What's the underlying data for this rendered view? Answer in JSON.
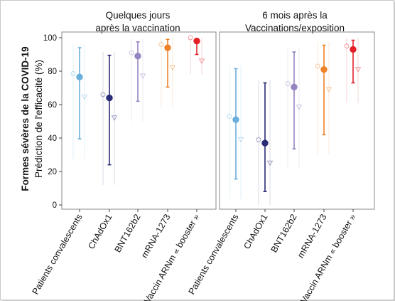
{
  "chart_data": [
    {
      "type": "scatter",
      "panel_title_line1": "Quelques jours",
      "panel_title_line2": "après la vaccination",
      "ylabel": "Prédiction de l'efficacité (%)",
      "outer_ylabel": "Formes sévères de la COVID-19",
      "ylim": [
        0,
        100
      ],
      "yticks": [
        0,
        20,
        40,
        60,
        80,
        100
      ],
      "categories": [
        "Patients convalescents",
        "ChAdOx1",
        "BNT162b2",
        "mRNA-1273",
        "Vaccin ARNm « booster »"
      ],
      "colors": [
        "#6aafdc",
        "#2b2c78",
        "#9484c2",
        "#ee8229",
        "#e32028"
      ],
      "series": [
        {
          "value": 76.5,
          "ci": [
            39.5,
            94
          ]
        },
        {
          "value": 64,
          "ci": [
            24,
            89.5
          ]
        },
        {
          "value": 89,
          "ci": [
            62,
            97.5
          ]
        },
        {
          "value": 94,
          "ci": [
            70.5,
            99
          ]
        },
        {
          "value": 98,
          "ci": [
            90,
            99.5
          ]
        }
      ],
      "grid": false
    },
    {
      "type": "scatter",
      "panel_title_line1": "6 mois après la",
      "panel_title_line2": "Vaccinations/exposition",
      "ylim": [
        0,
        100
      ],
      "categories": [
        "Patients convalescents",
        "ChAdOx1",
        "BNT162b2",
        "mRNA-1273",
        "Vaccin ARNm « booster »"
      ],
      "colors": [
        "#6aafdc",
        "#2b2c78",
        "#9484c2",
        "#ee8229",
        "#e32028"
      ],
      "series": [
        {
          "value": 51,
          "ci": [
            15.5,
            81.5
          ]
        },
        {
          "value": 37,
          "ci": [
            8,
            73
          ]
        },
        {
          "value": 70.5,
          "ci": [
            33.5,
            91.5
          ]
        },
        {
          "value": 81,
          "ci": [
            42,
            95.5
          ]
        },
        {
          "value": 93,
          "ci": [
            73,
            98.5
          ]
        }
      ],
      "grid": false
    }
  ]
}
